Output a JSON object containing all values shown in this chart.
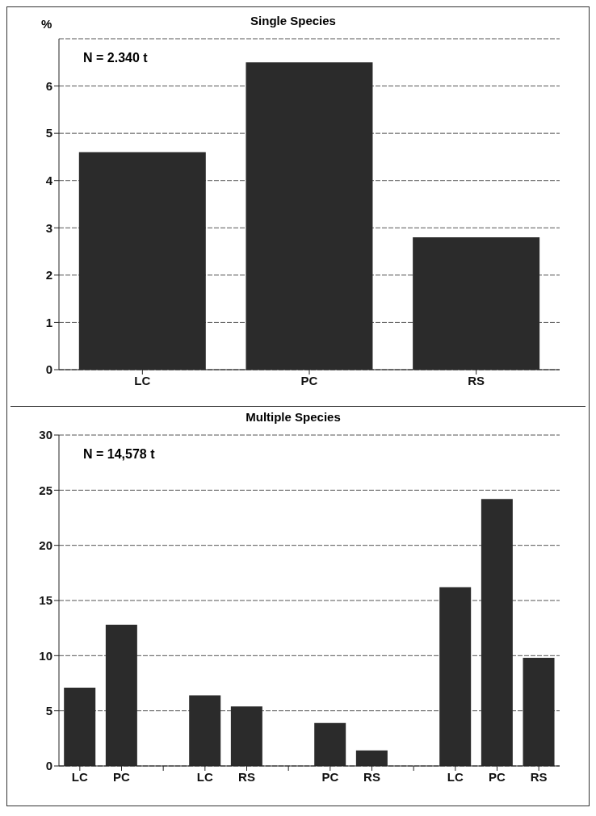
{
  "chart_data": [
    {
      "type": "bar",
      "title": "Single Species",
      "ylabel": "%",
      "categories": [
        "LC",
        "PC",
        "RS"
      ],
      "values": [
        4.6,
        6.5,
        2.8
      ],
      "color": "#2b2b2b",
      "ylim": [
        0,
        7
      ],
      "yticks": [
        0,
        1,
        2,
        3,
        4,
        5,
        6
      ],
      "grid": "y",
      "legend": false,
      "annotations": [
        "N = 2.340 t"
      ]
    },
    {
      "type": "bar",
      "title": "Multiple Species",
      "categories": [
        "LC",
        "PC",
        null,
        "LC",
        "RS",
        null,
        "PC",
        "RS",
        null,
        "LC",
        "PC",
        "RS"
      ],
      "values": [
        7.1,
        12.8,
        null,
        6.4,
        5.4,
        null,
        3.9,
        1.4,
        null,
        16.2,
        24.2,
        9.8
      ],
      "color": "#2b2b2b",
      "ylim": [
        0,
        30
      ],
      "yticks": [
        0,
        5,
        10,
        15,
        20,
        25,
        30
      ],
      "grid": "y",
      "legend": false,
      "annotations": [
        "N = 14,578 t"
      ]
    }
  ]
}
